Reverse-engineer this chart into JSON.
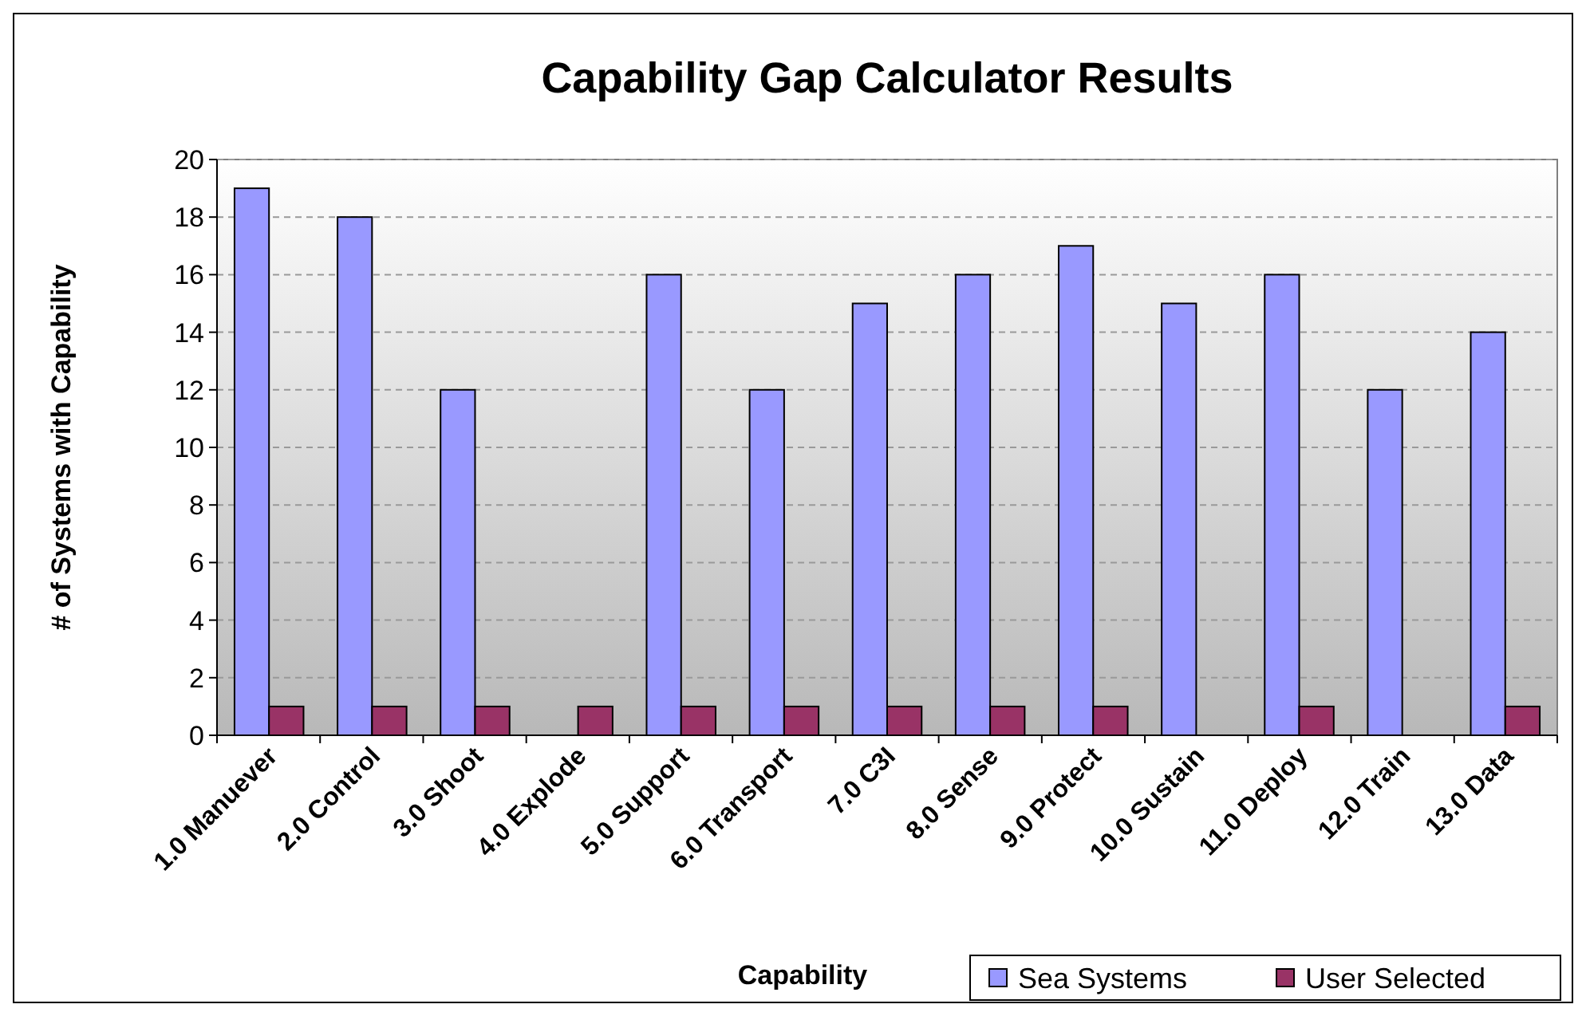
{
  "chart_data": {
    "type": "bar",
    "title": "Capability Gap Calculator Results",
    "xlabel": "Capability",
    "ylabel": "# of Systems with Capability",
    "categories": [
      "1.0 Manuever",
      "2.0 Control",
      "3.0 Shoot",
      "4.0 Explode",
      "5.0 Support",
      "6.0 Transport",
      "7.0 C3I",
      "8.0 Sense",
      "9.0 Protect",
      "10.0 Sustain",
      "11.0 Deploy",
      "12.0 Train",
      "13.0 Data"
    ],
    "series": [
      {
        "name": "Sea Systems",
        "color": "#9999ff",
        "values": [
          19,
          18,
          12,
          0,
          16,
          12,
          15,
          16,
          17,
          15,
          16,
          12,
          14
        ]
      },
      {
        "name": "User Selected",
        "color": "#993366",
        "values": [
          1,
          1,
          1,
          1,
          1,
          1,
          1,
          1,
          1,
          0,
          1,
          0,
          1
        ]
      }
    ],
    "ylim": [
      0,
      20
    ],
    "yticks": [
      0,
      2,
      4,
      6,
      8,
      10,
      12,
      14,
      16,
      18,
      20
    ],
    "grid": "y",
    "legend": "bottom right"
  }
}
